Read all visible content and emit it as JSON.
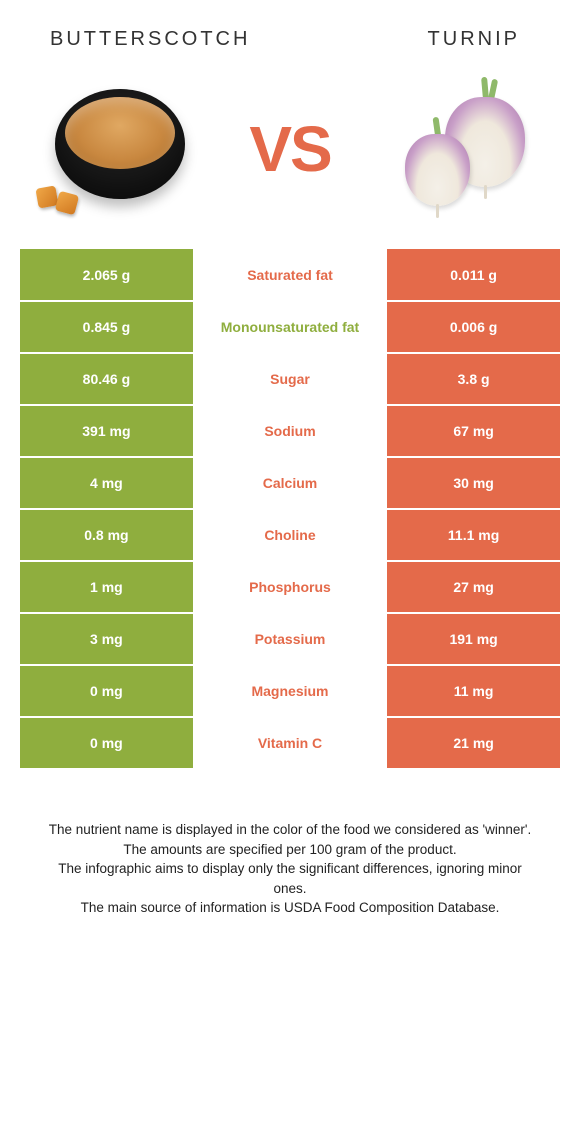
{
  "colors": {
    "left": "#8fae3e",
    "right": "#e46a4a",
    "mid_left_text": "#8fae3e",
    "mid_right_text": "#e46a4a"
  },
  "header": {
    "left": "BUTTERSCOTCH",
    "right": "TURNIP"
  },
  "vs": "VS",
  "rows": [
    {
      "left": "2.065 g",
      "label": "Saturated fat",
      "right": "0.011 g",
      "winner": "right"
    },
    {
      "left": "0.845 g",
      "label": "Monounsaturated fat",
      "right": "0.006 g",
      "winner": "left"
    },
    {
      "left": "80.46 g",
      "label": "Sugar",
      "right": "3.8 g",
      "winner": "right"
    },
    {
      "left": "391 mg",
      "label": "Sodium",
      "right": "67 mg",
      "winner": "right"
    },
    {
      "left": "4 mg",
      "label": "Calcium",
      "right": "30 mg",
      "winner": "right"
    },
    {
      "left": "0.8 mg",
      "label": "Choline",
      "right": "11.1 mg",
      "winner": "right"
    },
    {
      "left": "1 mg",
      "label": "Phosphorus",
      "right": "27 mg",
      "winner": "right"
    },
    {
      "left": "3 mg",
      "label": "Potassium",
      "right": "191 mg",
      "winner": "right"
    },
    {
      "left": "0 mg",
      "label": "Magnesium",
      "right": "11 mg",
      "winner": "right"
    },
    {
      "left": "0 mg",
      "label": "Vitamin C",
      "right": "21 mg",
      "winner": "right"
    }
  ],
  "footer": {
    "line1": "The nutrient name is displayed in the color of the food we considered as 'winner'.",
    "line2": "The amounts are specified per 100 gram of the product.",
    "line3": "The infographic aims to display only the significant differences, ignoring minor ones.",
    "line4": "The main source of information is USDA Food Composition Database."
  }
}
